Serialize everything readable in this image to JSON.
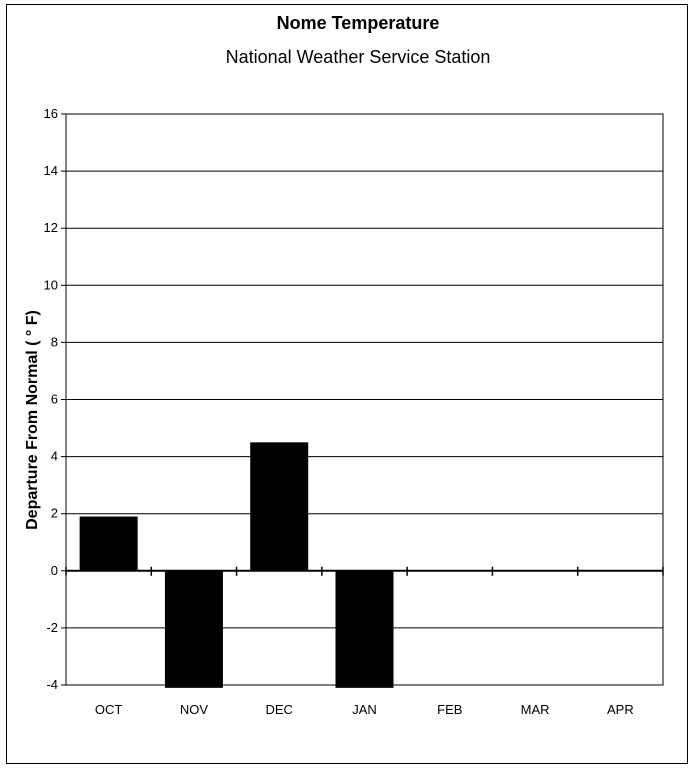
{
  "chart_data": {
    "type": "bar",
    "title": "Nome Temperature",
    "subtitle": "National Weather Service Station",
    "ylabel": "Departure From Normal  ( ° F)",
    "xlabel": "",
    "categories": [
      "OCT",
      "NOV",
      "DEC",
      "JAN",
      "FEB",
      "MAR",
      "APR"
    ],
    "values": [
      1.9,
      -4.1,
      4.5,
      -4.1,
      null,
      null,
      null
    ],
    "ylim": [
      -4,
      16
    ],
    "yticks": [
      -4,
      -2,
      0,
      2,
      4,
      6,
      8,
      10,
      12,
      14,
      16
    ],
    "grid": true,
    "legend": "none",
    "bar_color": "#000000"
  }
}
